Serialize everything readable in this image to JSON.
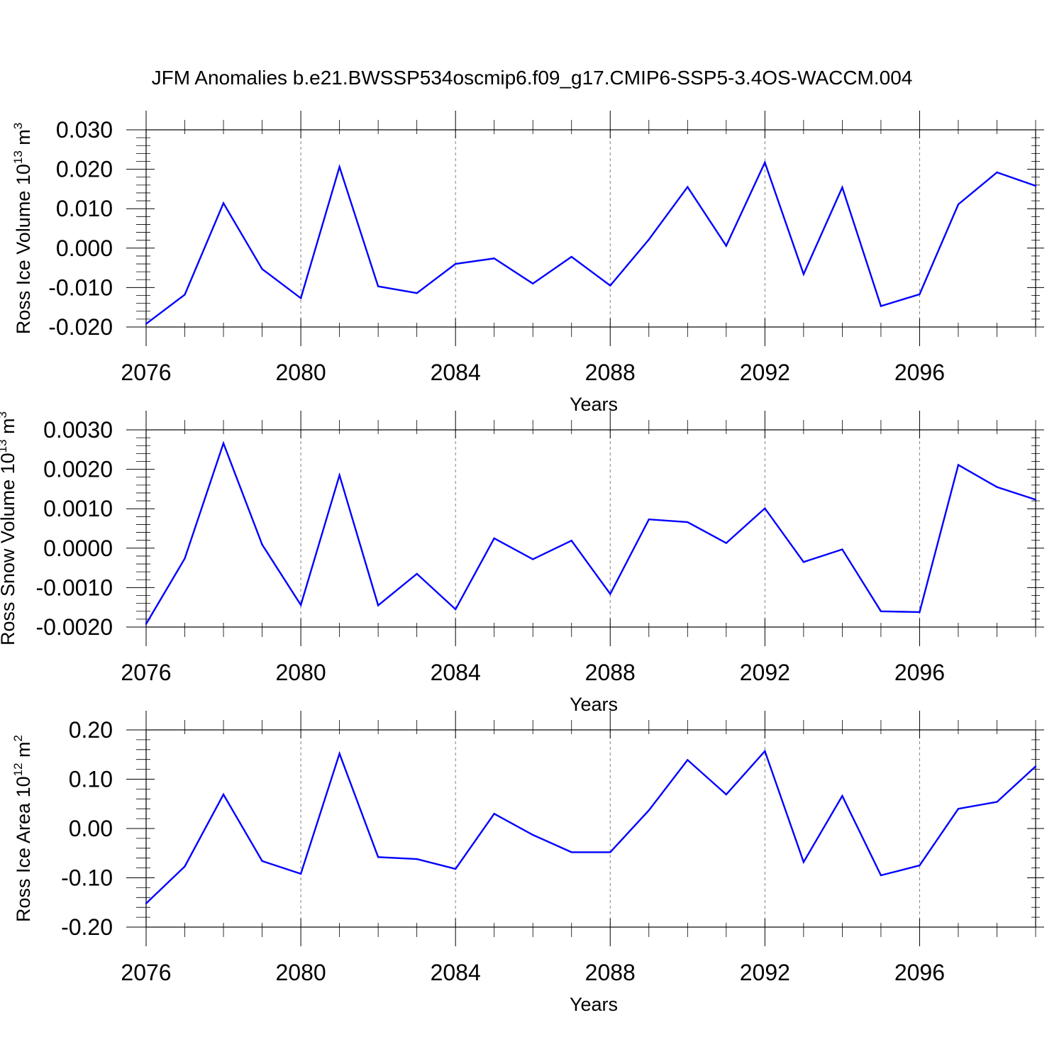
{
  "title": "JFM Anomalies b.e21.BWSSP534oscmip6.f09_g17.CMIP6-SSP5-3.4OS-WACCM.004",
  "colors": {
    "line": "#0000ff",
    "axis": "#000000",
    "grid": "#808080"
  },
  "chart_data": [
    {
      "type": "line",
      "name": "ross-ice-volume",
      "ylabel": {
        "text": "Ross Ice Volume 10",
        "exp": "13",
        "unit": " m",
        "unit_exp": "3"
      },
      "xlabel": "Years",
      "xlim": [
        2076,
        2099
      ],
      "ylim": [
        -0.02,
        0.03
      ],
      "yticks": [
        -0.02,
        -0.01,
        0.0,
        0.01,
        0.02,
        0.03
      ],
      "ytick_labels": [
        "-0.020",
        "-0.010",
        "0.000",
        "0.010",
        "0.020",
        "0.030"
      ],
      "xticks": [
        2076,
        2080,
        2084,
        2088,
        2092,
        2096
      ],
      "xtick_labels": [
        "2076",
        "2080",
        "2084",
        "2088",
        "2092",
        "2096"
      ],
      "x": [
        2076,
        2077,
        2078,
        2079,
        2080,
        2081,
        2082,
        2083,
        2084,
        2085,
        2086,
        2087,
        2088,
        2089,
        2090,
        2091,
        2092,
        2093,
        2094,
        2095,
        2096,
        2097,
        2098,
        2099
      ],
      "values": [
        -0.0192,
        -0.0118,
        0.0114,
        -0.0053,
        -0.0127,
        0.0206,
        -0.0097,
        -0.0114,
        -0.004,
        -0.0026,
        -0.009,
        -0.0022,
        -0.0095,
        0.0022,
        0.0155,
        0.0006,
        0.0217,
        -0.0066,
        0.0154,
        -0.0147,
        -0.0117,
        0.0111,
        0.0192,
        0.0158
      ]
    },
    {
      "type": "line",
      "name": "ross-snow-volume",
      "ylabel": {
        "text": "Ross Snow Volume 10",
        "exp": "13",
        "unit": " m",
        "unit_exp": "3"
      },
      "xlabel": "Years",
      "xlim": [
        2076,
        2099
      ],
      "ylim": [
        -0.002,
        0.003
      ],
      "yticks": [
        -0.002,
        -0.001,
        0.0,
        0.001,
        0.002,
        0.003
      ],
      "ytick_labels": [
        "-0.0020",
        "-0.0010",
        "0.0000",
        "0.0010",
        "0.0020",
        "0.0030"
      ],
      "xticks": [
        2076,
        2080,
        2084,
        2088,
        2092,
        2096
      ],
      "xtick_labels": [
        "2076",
        "2080",
        "2084",
        "2088",
        "2092",
        "2096"
      ],
      "x": [
        2076,
        2077,
        2078,
        2079,
        2080,
        2081,
        2082,
        2083,
        2084,
        2085,
        2086,
        2087,
        2088,
        2089,
        2090,
        2091,
        2092,
        2093,
        2094,
        2095,
        2096,
        2097,
        2098,
        2099
      ],
      "values": [
        -0.00192,
        -0.00026,
        0.00266,
        9e-05,
        -0.00144,
        0.00185,
        -0.00145,
        -0.00065,
        -0.00155,
        0.00025,
        -0.00028,
        0.00019,
        -0.00116,
        0.00073,
        0.00066,
        0.00013,
        0.00101,
        -0.00035,
        -3e-05,
        -0.0016,
        -0.00162,
        0.00211,
        0.00155,
        0.00123
      ]
    },
    {
      "type": "line",
      "name": "ross-ice-area",
      "ylabel": {
        "text": "Ross Ice Area 10",
        "exp": "12",
        "unit": " m",
        "unit_exp": "2"
      },
      "xlabel": "Years",
      "xlim": [
        2076,
        2099
      ],
      "ylim": [
        -0.2,
        0.2
      ],
      "yticks": [
        -0.2,
        -0.1,
        0.0,
        0.1,
        0.2
      ],
      "ytick_labels": [
        "-0.20",
        "-0.10",
        "0.00",
        "0.10",
        "0.20"
      ],
      "xticks": [
        2076,
        2080,
        2084,
        2088,
        2092,
        2096
      ],
      "xtick_labels": [
        "2076",
        "2080",
        "2084",
        "2088",
        "2092",
        "2096"
      ],
      "x": [
        2076,
        2077,
        2078,
        2079,
        2080,
        2081,
        2082,
        2083,
        2084,
        2085,
        2086,
        2087,
        2088,
        2089,
        2090,
        2091,
        2092,
        2093,
        2094,
        2095,
        2096,
        2097,
        2098,
        2099
      ],
      "values": [
        -0.152,
        -0.077,
        0.069,
        -0.066,
        -0.092,
        0.152,
        -0.058,
        -0.062,
        -0.082,
        0.03,
        -0.013,
        -0.048,
        -0.048,
        0.037,
        0.139,
        0.069,
        0.157,
        -0.068,
        0.066,
        -0.095,
        -0.075,
        0.04,
        0.054,
        0.126
      ]
    }
  ]
}
